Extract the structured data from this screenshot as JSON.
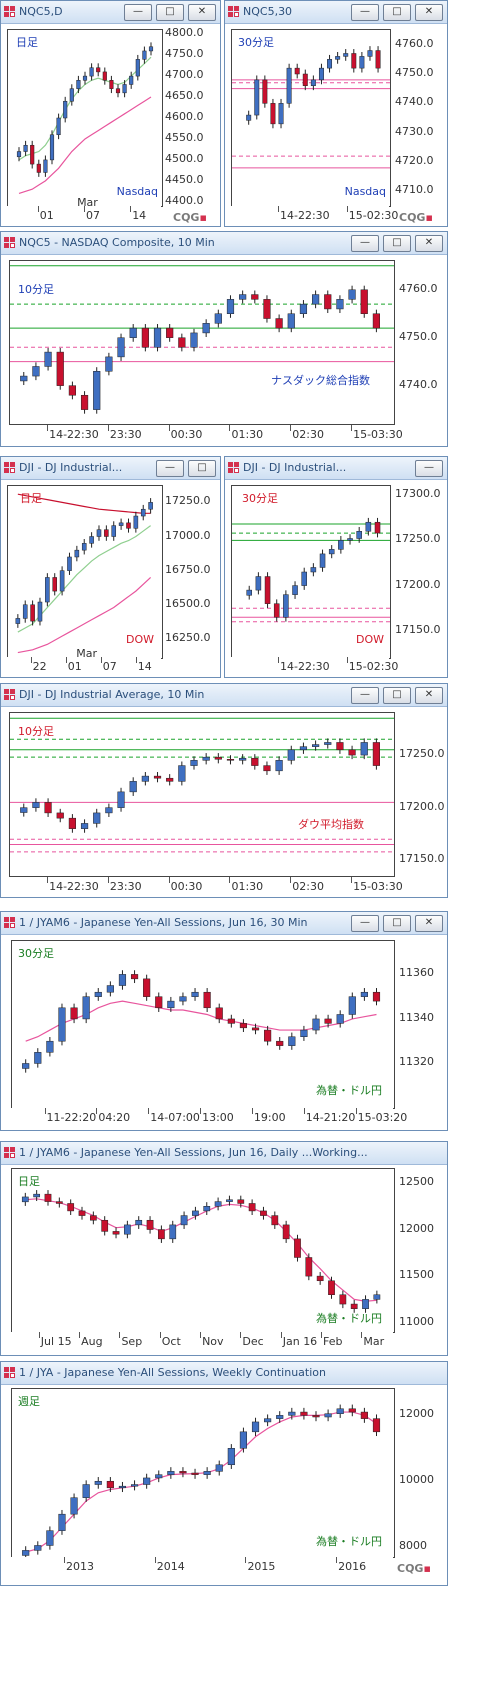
{
  "colors": {
    "up": "#3f6fc1",
    "down": "#c8102e",
    "pink": "#e8559d",
    "green": "#1aa32a",
    "bg": "#ffffff",
    "title_bg": "#d6e5f5"
  },
  "window_buttons": {
    "minimize": "—",
    "restore": "□",
    "close": "✕"
  },
  "cqg": "CQG",
  "panels": [
    {
      "id": "p1",
      "title": "NQC5,D",
      "tf": "日足",
      "tf_color": "#1f3fb5",
      "note": "Nasdaq",
      "note_color": "#1f3fb5",
      "yticks": [
        "4800.0",
        "4750.0",
        "4700.0",
        "4650.0",
        "4600.0",
        "4550.0",
        "4500.0",
        "4450.0",
        "4400.0"
      ],
      "ylim": [
        4390,
        4810
      ],
      "xlabels": [
        "01",
        "07",
        "14"
      ],
      "xextra": "Mar"
    },
    {
      "id": "p2",
      "title": "NQC5,30",
      "tf": "30分足",
      "tf_color": "#1f3fb5",
      "note": "Nasdaq",
      "note_color": "#1f3fb5",
      "yticks": [
        "4760.0",
        "4750.0",
        "4740.0",
        "4730.0",
        "4720.0",
        "4710.0"
      ],
      "ylim": [
        4705,
        4765
      ],
      "xlabels": [
        "14-22:30",
        "15-02:30"
      ]
    },
    {
      "id": "p3",
      "title": "NQC5 - NASDAQ Composite, 10 Min",
      "tf": "10分足",
      "tf_color": "#1f3fb5",
      "note": "ナスダック総合指数",
      "note_color": "#1f3fb5",
      "yticks": [
        "4760.0",
        "4750.0",
        "4740.0"
      ],
      "ylim": [
        4732,
        4766
      ],
      "xlabels": [
        "14-22:30",
        "23:30",
        "00:30",
        "01:30",
        "02:30",
        "15-03:30"
      ]
    },
    {
      "id": "p4",
      "title": "DJI - DJ Industrial...",
      "tf": "日足",
      "tf_color": "#d11a2a",
      "note": "DOW",
      "note_color": "#d11a2a",
      "yticks": [
        "17250.0",
        "17000.0",
        "16750.0",
        "16500.0",
        "16250.0"
      ],
      "ylim": [
        16110,
        17370
      ],
      "xlabels": [
        "22",
        "01",
        "07",
        "14"
      ],
      "xextra": "Mar"
    },
    {
      "id": "p5",
      "title": "DJI - DJ Industrial...",
      "tf": "30分足",
      "tf_color": "#d11a2a",
      "note": "DOW",
      "note_color": "#d11a2a",
      "yticks": [
        "17300.0",
        "17250.0",
        "17200.0",
        "17150.0"
      ],
      "ylim": [
        17120,
        17310
      ],
      "xlabels": [
        "14-22:30",
        "15-02:30"
      ]
    },
    {
      "id": "p6",
      "title": "DJI - DJ Industrial Average, 10 Min",
      "tf": "10分足",
      "tf_color": "#d11a2a",
      "note": "ダウ平均指数",
      "note_color": "#d11a2a",
      "yticks": [
        "17250.0",
        "17200.0",
        "17150.0"
      ],
      "ylim": [
        17135,
        17290
      ],
      "xlabels": [
        "14-22:30",
        "23:30",
        "00:30",
        "01:30",
        "02:30",
        "15-03:30"
      ]
    },
    {
      "id": "p7",
      "title": "1 / JYAM6 - Japanese Yen-All Sessions, Jun 16, 30 Min",
      "tf": "30分足",
      "tf_color": "#1a7d22",
      "note": "為替・ドル円",
      "note_color": "#1a7d22",
      "yticks": [
        "11360",
        "11340",
        "11320"
      ],
      "ylim": [
        11300,
        11375
      ],
      "xlabels": [
        "11-22:20",
        "04:20",
        "14-07:00",
        "13:00",
        "19:00",
        "14-21:20",
        "15-03:20"
      ]
    },
    {
      "id": "p8",
      "title": "1 / JYAM6 - Japanese Yen-All Sessions, Jun 16, Daily ...Working...",
      "tf": "日足",
      "tf_color": "#1a7d22",
      "note": "為替・ドル円",
      "note_color": "#1a7d22",
      "yticks": [
        "12500",
        "12000",
        "11500",
        "11000"
      ],
      "ylim": [
        10900,
        12650
      ],
      "xlabels": [
        "Jul 15",
        "Aug",
        "Sep",
        "Oct",
        "Nov",
        "Dec",
        "Jan 16",
        "Feb",
        "Mar"
      ]
    },
    {
      "id": "p9",
      "title": "1 / JYA - Japanese Yen-All Sessions, Weekly Continuation",
      "tf": "週足",
      "tf_color": "#1a7d22",
      "note": "為替・ドル円",
      "note_color": "#1a7d22",
      "yticks": [
        "12000",
        "10000",
        "8000"
      ],
      "ylim": [
        7700,
        12800
      ],
      "xlabels": [
        "2013",
        "2014",
        "2015",
        "2016"
      ]
    }
  ],
  "chart_data": [
    {
      "type": "candlestick",
      "panel": "p1",
      "series": [
        {
          "name": "price",
          "values": [
            4520,
            4535,
            4490,
            4470,
            4500,
            4560,
            4600,
            4640,
            4670,
            4690,
            4700,
            4720,
            4710,
            4690,
            4670,
            4660,
            4680,
            4700,
            4740,
            4760,
            4770
          ]
        },
        {
          "name": "ma-fast",
          "values": [
            4500,
            4510,
            4515,
            4520,
            4535,
            4560,
            4590,
            4620,
            4645,
            4665,
            4680,
            4690,
            4695,
            4690,
            4685,
            4680,
            4685,
            4700,
            4715,
            4730,
            4745
          ]
        },
        {
          "name": "ma-slow",
          "values": [
            4420,
            4425,
            4430,
            4440,
            4450,
            4465,
            4480,
            4500,
            4520,
            4535,
            4550,
            4560,
            4570,
            4580,
            4590,
            4600,
            4610,
            4620,
            4630,
            4640,
            4650
          ]
        }
      ]
    },
    {
      "type": "candlestick",
      "panel": "p2",
      "series": [
        {
          "name": "price",
          "values": [
            4736,
            4748,
            4740,
            4733,
            4740,
            4752,
            4750,
            4746,
            4748,
            4752,
            4755,
            4756,
            4757,
            4752,
            4756,
            4758,
            4752
          ]
        }
      ],
      "hlines": [
        4748,
        4747,
        4745,
        4722,
        4718
      ]
    },
    {
      "type": "candlestick",
      "panel": "p3",
      "series": [
        {
          "name": "price",
          "values": [
            4742,
            4744,
            4747,
            4740,
            4738,
            4735,
            4743,
            4746,
            4750,
            4752,
            4748,
            4752,
            4750,
            4748,
            4751,
            4753,
            4755,
            4758,
            4759,
            4758,
            4754,
            4752,
            4755,
            4757,
            4759,
            4756,
            4758,
            4760,
            4755,
            4752
          ]
        }
      ],
      "hlines": [
        4765,
        4757,
        4752,
        4748,
        4745
      ]
    },
    {
      "type": "candlestick",
      "panel": "p4",
      "series": [
        {
          "name": "price",
          "values": [
            16400,
            16500,
            16380,
            16520,
            16700,
            16600,
            16750,
            16850,
            16900,
            16950,
            17000,
            17050,
            17000,
            17080,
            17100,
            17060,
            17150,
            17200,
            17250
          ]
        },
        {
          "name": "ma-top",
          "values": [
            17310,
            17300,
            17290,
            17280,
            17270,
            17260,
            17250,
            17240,
            17230,
            17220,
            17210,
            17200,
            17195,
            17190,
            17185,
            17180,
            17175,
            17170,
            17170
          ]
        },
        {
          "name": "ma-fast",
          "values": [
            16300,
            16330,
            16360,
            16420,
            16480,
            16540,
            16600,
            16660,
            16720,
            16770,
            16820,
            16860,
            16890,
            16920,
            16950,
            16970,
            17000,
            17040,
            17080
          ]
        },
        {
          "name": "ma-slow",
          "values": [
            16150,
            16160,
            16170,
            16190,
            16210,
            16240,
            16270,
            16300,
            16330,
            16360,
            16390,
            16420,
            16450,
            16480,
            16520,
            16560,
            16600,
            16650,
            16700
          ]
        }
      ]
    },
    {
      "type": "candlestick",
      "panel": "p5",
      "series": [
        {
          "name": "price",
          "values": [
            17195,
            17210,
            17180,
            17165,
            17190,
            17200,
            17215,
            17220,
            17235,
            17240,
            17250,
            17252,
            17260,
            17270,
            17258
          ]
        }
      ],
      "hlines": [
        17268,
        17258,
        17250,
        17175,
        17165,
        17160
      ]
    },
    {
      "type": "candlestick",
      "panel": "p6",
      "series": [
        {
          "name": "price",
          "values": [
            17200,
            17205,
            17195,
            17190,
            17180,
            17185,
            17195,
            17200,
            17215,
            17225,
            17230,
            17228,
            17225,
            17240,
            17245,
            17248,
            17246,
            17245,
            17247,
            17240,
            17235,
            17245,
            17255,
            17258,
            17260,
            17262,
            17255,
            17250,
            17262,
            17240
          ]
        }
      ],
      "hlines": [
        17285,
        17265,
        17255,
        17248,
        17205,
        17170,
        17165,
        17158
      ]
    },
    {
      "type": "candlestick",
      "panel": "p7",
      "series": [
        {
          "name": "price",
          "values": [
            11320,
            11325,
            11330,
            11345,
            11340,
            11350,
            11352,
            11355,
            11360,
            11358,
            11350,
            11345,
            11348,
            11350,
            11352,
            11345,
            11340,
            11338,
            11336,
            11335,
            11330,
            11328,
            11332,
            11335,
            11340,
            11338,
            11342,
            11350,
            11352,
            11348
          ]
        },
        {
          "name": "ma",
          "values": [
            11330,
            11332,
            11335,
            11338,
            11340,
            11342,
            11345,
            11347,
            11348,
            11347,
            11346,
            11345,
            11344,
            11344,
            11343,
            11342,
            11340,
            11339,
            11338,
            11337,
            11336,
            11335,
            11335,
            11335,
            11336,
            11337,
            11338,
            11340,
            11341,
            11342
          ]
        }
      ]
    },
    {
      "type": "candlestick",
      "panel": "p8",
      "series": [
        {
          "name": "price",
          "values": [
            12350,
            12380,
            12300,
            12280,
            12200,
            12150,
            12100,
            11980,
            11950,
            12050,
            12100,
            12000,
            11900,
            12050,
            12150,
            12200,
            12250,
            12300,
            12320,
            12280,
            12200,
            12150,
            12050,
            11900,
            11700,
            11500,
            11450,
            11300,
            11200,
            11150,
            11250,
            11300
          ]
        },
        {
          "name": "ma",
          "values": [
            12320,
            12330,
            12310,
            12290,
            12250,
            12200,
            12150,
            12080,
            12020,
            12030,
            12060,
            12030,
            11980,
            12020,
            12080,
            12140,
            12200,
            12250,
            12270,
            12260,
            12230,
            12180,
            12100,
            11980,
            11850,
            11700,
            11580,
            11450,
            11350,
            11250,
            11230,
            11240
          ]
        }
      ]
    },
    {
      "type": "candlestick",
      "panel": "p9",
      "series": [
        {
          "name": "price",
          "values": [
            7900,
            8050,
            8500,
            9000,
            9500,
            9900,
            10000,
            9800,
            9850,
            9900,
            10100,
            10200,
            10300,
            10250,
            10200,
            10300,
            10500,
            11000,
            11500,
            11800,
            11900,
            12000,
            12100,
            12000,
            11950,
            12050,
            12200,
            12100,
            11900,
            11500
          ]
        },
        {
          "name": "ma",
          "values": [
            7850,
            7950,
            8200,
            8600,
            9000,
            9400,
            9650,
            9750,
            9800,
            9850,
            9950,
            10100,
            10200,
            10220,
            10230,
            10260,
            10380,
            10650,
            11000,
            11350,
            11600,
            11800,
            11950,
            12000,
            12000,
            12020,
            12100,
            12100,
            12000,
            11750
          ]
        }
      ]
    }
  ]
}
